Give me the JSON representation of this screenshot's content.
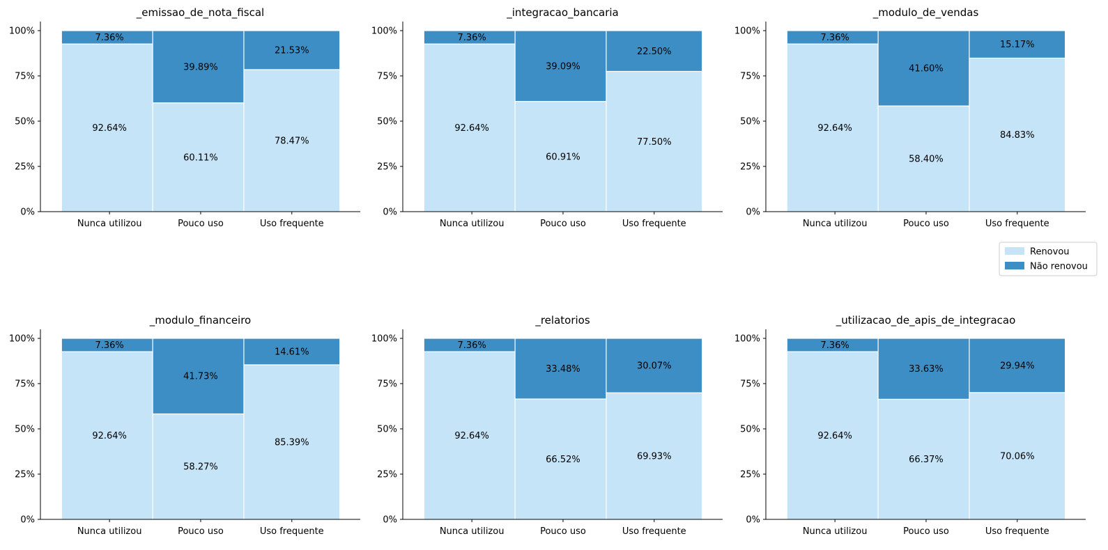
{
  "chart_data": [
    {
      "type": "bar",
      "stacked": true,
      "title": "_emissao_de_nota_fiscal",
      "categories": [
        "Nunca utilizou",
        "Pouco uso",
        "Uso frequente"
      ],
      "series": [
        {
          "name": "Renovou",
          "values": [
            92.64,
            60.11,
            78.47
          ],
          "labels": [
            "92.64%",
            "60.11%",
            "78.47%"
          ]
        },
        {
          "name": "Não renovou",
          "values": [
            7.36,
            39.89,
            21.53
          ],
          "labels": [
            "7.36%",
            "39.89%",
            "21.53%"
          ]
        }
      ],
      "ylim": [
        0,
        105
      ],
      "yticks": [
        0,
        25,
        50,
        75,
        100
      ],
      "ytick_labels": [
        "0%",
        "25%",
        "50%",
        "75%",
        "100%"
      ]
    },
    {
      "type": "bar",
      "stacked": true,
      "title": "_integracao_bancaria",
      "categories": [
        "Nunca utilizou",
        "Pouco uso",
        "Uso frequente"
      ],
      "series": [
        {
          "name": "Renovou",
          "values": [
            92.64,
            60.91,
            77.5
          ],
          "labels": [
            "92.64%",
            "60.91%",
            "77.50%"
          ]
        },
        {
          "name": "Não renovou",
          "values": [
            7.36,
            39.09,
            22.5
          ],
          "labels": [
            "7.36%",
            "39.09%",
            "22.50%"
          ]
        }
      ],
      "ylim": [
        0,
        105
      ],
      "yticks": [
        0,
        25,
        50,
        75,
        100
      ],
      "ytick_labels": [
        "0%",
        "25%",
        "50%",
        "75%",
        "100%"
      ]
    },
    {
      "type": "bar",
      "stacked": true,
      "title": "_modulo_de_vendas",
      "categories": [
        "Nunca utilizou",
        "Pouco uso",
        "Uso frequente"
      ],
      "series": [
        {
          "name": "Renovou",
          "values": [
            92.64,
            58.4,
            84.83
          ],
          "labels": [
            "92.64%",
            "58.40%",
            "84.83%"
          ]
        },
        {
          "name": "Não renovou",
          "values": [
            7.36,
            41.6,
            15.17
          ],
          "labels": [
            "7.36%",
            "41.60%",
            "15.17%"
          ]
        }
      ],
      "ylim": [
        0,
        105
      ],
      "yticks": [
        0,
        25,
        50,
        75,
        100
      ],
      "ytick_labels": [
        "0%",
        "25%",
        "50%",
        "75%",
        "100%"
      ]
    },
    {
      "type": "bar",
      "stacked": true,
      "title": "_modulo_financeiro",
      "categories": [
        "Nunca utilizou",
        "Pouco uso",
        "Uso frequente"
      ],
      "series": [
        {
          "name": "Renovou",
          "values": [
            92.64,
            58.27,
            85.39
          ],
          "labels": [
            "92.64%",
            "58.27%",
            "85.39%"
          ]
        },
        {
          "name": "Não renovou",
          "values": [
            7.36,
            41.73,
            14.61
          ],
          "labels": [
            "7.36%",
            "41.73%",
            "14.61%"
          ]
        }
      ],
      "ylim": [
        0,
        105
      ],
      "yticks": [
        0,
        25,
        50,
        75,
        100
      ],
      "ytick_labels": [
        "0%",
        "25%",
        "50%",
        "75%",
        "100%"
      ]
    },
    {
      "type": "bar",
      "stacked": true,
      "title": "_relatorios",
      "categories": [
        "Nunca utilizou",
        "Pouco uso",
        "Uso frequente"
      ],
      "series": [
        {
          "name": "Renovou",
          "values": [
            92.64,
            66.52,
            69.93
          ],
          "labels": [
            "92.64%",
            "66.52%",
            "69.93%"
          ]
        },
        {
          "name": "Não renovou",
          "values": [
            7.36,
            33.48,
            30.07
          ],
          "labels": [
            "7.36%",
            "33.48%",
            "30.07%"
          ]
        }
      ],
      "ylim": [
        0,
        105
      ],
      "yticks": [
        0,
        25,
        50,
        75,
        100
      ],
      "ytick_labels": [
        "0%",
        "25%",
        "50%",
        "75%",
        "100%"
      ]
    },
    {
      "type": "bar",
      "stacked": true,
      "title": "_utilizacao_de_apis_de_integracao",
      "categories": [
        "Nunca utilizou",
        "Pouco uso",
        "Uso frequente"
      ],
      "series": [
        {
          "name": "Renovou",
          "values": [
            92.64,
            66.37,
            70.06
          ],
          "labels": [
            "92.64%",
            "66.37%",
            "70.06%"
          ]
        },
        {
          "name": "Não renovou",
          "values": [
            7.36,
            33.63,
            29.94
          ],
          "labels": [
            "7.36%",
            "33.63%",
            "29.94%"
          ]
        }
      ],
      "ylim": [
        0,
        105
      ],
      "yticks": [
        0,
        25,
        50,
        75,
        100
      ],
      "ytick_labels": [
        "0%",
        "25%",
        "50%",
        "75%",
        "100%"
      ]
    }
  ],
  "legend": {
    "placement": "right, between rows",
    "items": [
      {
        "label": "Renovou",
        "color": "#c5e4f7"
      },
      {
        "label": "Não renovou",
        "color": "#3d8ec4"
      }
    ]
  },
  "colors": {
    "renovou": "#c5e4f7",
    "nao_renovou": "#3d8ec4",
    "bar_edge": "#ffffff",
    "axis": "#000000"
  }
}
